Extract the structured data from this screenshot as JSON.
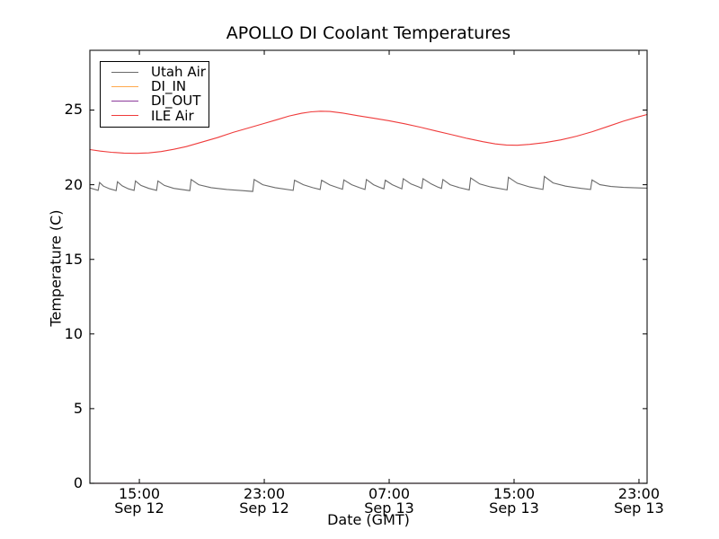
{
  "figure": {
    "title": "APOLLO DI Coolant Temperatures",
    "xlabel": "Date (GMT)",
    "ylabel": "Temperature (C)"
  },
  "chart_data": {
    "type": "line",
    "title": "APOLLO DI Coolant Temperatures",
    "xlabel": "Date (GMT)",
    "ylabel": "Temperature (C)",
    "x_unit": "hours since Sep 12 00:00 GMT",
    "xlim": [
      11.83,
      47.52
    ],
    "ylim": [
      0,
      29
    ],
    "grid": false,
    "legend_position": "upper left",
    "y_ticks": [
      0,
      5,
      10,
      15,
      20,
      25
    ],
    "x_ticks": [
      {
        "value": 15,
        "label_line1": "15:00",
        "label_line2": "Sep 12"
      },
      {
        "value": 23,
        "label_line1": "23:00",
        "label_line2": "Sep 12"
      },
      {
        "value": 31,
        "label_line1": "07:00",
        "label_line2": "Sep 13"
      },
      {
        "value": 39,
        "label_line1": "15:00",
        "label_line2": "Sep 13"
      },
      {
        "value": 47,
        "label_line1": "23:00",
        "label_line2": "Sep 13"
      }
    ],
    "series": [
      {
        "name": "Utah Air",
        "color": "#6a6a6a",
        "points": [
          [
            11.83,
            19.78
          ],
          [
            12.36,
            19.62
          ],
          [
            12.45,
            20.15
          ],
          [
            12.7,
            19.9
          ],
          [
            13.1,
            19.72
          ],
          [
            13.51,
            19.6
          ],
          [
            13.6,
            20.2
          ],
          [
            13.9,
            19.92
          ],
          [
            14.3,
            19.72
          ],
          [
            14.66,
            19.62
          ],
          [
            14.75,
            20.25
          ],
          [
            15.1,
            19.95
          ],
          [
            15.6,
            19.75
          ],
          [
            16.1,
            19.62
          ],
          [
            16.19,
            20.25
          ],
          [
            16.6,
            19.95
          ],
          [
            17.2,
            19.75
          ],
          [
            18.23,
            19.6
          ],
          [
            18.32,
            20.35
          ],
          [
            18.8,
            20.0
          ],
          [
            19.6,
            19.8
          ],
          [
            20.6,
            19.68
          ],
          [
            21.6,
            19.6
          ],
          [
            22.26,
            19.55
          ],
          [
            22.35,
            20.35
          ],
          [
            22.9,
            20.0
          ],
          [
            23.7,
            19.8
          ],
          [
            24.85,
            19.62
          ],
          [
            24.94,
            20.3
          ],
          [
            25.5,
            20.0
          ],
          [
            26.1,
            19.8
          ],
          [
            26.58,
            19.68
          ],
          [
            26.67,
            20.3
          ],
          [
            27.2,
            19.98
          ],
          [
            27.7,
            19.8
          ],
          [
            28.01,
            19.7
          ],
          [
            28.1,
            20.32
          ],
          [
            28.6,
            20.0
          ],
          [
            29.1,
            19.8
          ],
          [
            29.45,
            19.68
          ],
          [
            29.54,
            20.35
          ],
          [
            30.0,
            20.0
          ],
          [
            30.4,
            19.82
          ],
          [
            30.66,
            19.72
          ],
          [
            30.75,
            20.3
          ],
          [
            31.2,
            20.0
          ],
          [
            31.6,
            19.82
          ],
          [
            31.81,
            19.72
          ],
          [
            31.9,
            20.4
          ],
          [
            32.4,
            20.05
          ],
          [
            32.9,
            19.85
          ],
          [
            33.08,
            19.75
          ],
          [
            33.17,
            20.4
          ],
          [
            33.7,
            20.05
          ],
          [
            34.1,
            19.85
          ],
          [
            34.35,
            19.75
          ],
          [
            34.44,
            20.35
          ],
          [
            34.9,
            20.0
          ],
          [
            35.5,
            19.8
          ],
          [
            36.13,
            19.65
          ],
          [
            36.22,
            20.45
          ],
          [
            36.8,
            20.05
          ],
          [
            37.5,
            19.85
          ],
          [
            38.55,
            19.65
          ],
          [
            38.64,
            20.5
          ],
          [
            39.2,
            20.1
          ],
          [
            40.0,
            19.85
          ],
          [
            40.85,
            19.68
          ],
          [
            40.94,
            20.55
          ],
          [
            41.5,
            20.12
          ],
          [
            42.3,
            19.9
          ],
          [
            43.3,
            19.75
          ],
          [
            43.9,
            19.68
          ],
          [
            43.99,
            20.32
          ],
          [
            44.5,
            20.0
          ],
          [
            45.2,
            19.88
          ],
          [
            46.0,
            19.82
          ],
          [
            47.0,
            19.78
          ],
          [
            47.52,
            19.77
          ]
        ]
      },
      {
        "name": "DI_IN",
        "color": "#ffa94d",
        "points": [
          [
            11.83,
            0
          ],
          [
            47.52,
            0
          ]
        ]
      },
      {
        "name": "DI_OUT",
        "color": "#8c3b9b",
        "points": [
          [
            11.83,
            0
          ],
          [
            47.52,
            0
          ]
        ]
      },
      {
        "name": "ILE Air",
        "color": "#ef3b3b",
        "points": [
          [
            11.83,
            22.35
          ],
          [
            12.5,
            22.25
          ],
          [
            13.2,
            22.17
          ],
          [
            14.0,
            22.12
          ],
          [
            14.8,
            22.1
          ],
          [
            15.6,
            22.13
          ],
          [
            16.4,
            22.22
          ],
          [
            17.2,
            22.37
          ],
          [
            18.0,
            22.55
          ],
          [
            19.0,
            22.85
          ],
          [
            20.0,
            23.15
          ],
          [
            21.0,
            23.5
          ],
          [
            22.0,
            23.8
          ],
          [
            23.0,
            24.1
          ],
          [
            23.8,
            24.35
          ],
          [
            24.6,
            24.6
          ],
          [
            25.4,
            24.78
          ],
          [
            26.0,
            24.88
          ],
          [
            26.6,
            24.92
          ],
          [
            27.2,
            24.9
          ],
          [
            28.0,
            24.8
          ],
          [
            29.0,
            24.62
          ],
          [
            30.0,
            24.45
          ],
          [
            31.0,
            24.28
          ],
          [
            32.0,
            24.08
          ],
          [
            33.0,
            23.85
          ],
          [
            34.0,
            23.6
          ],
          [
            35.0,
            23.35
          ],
          [
            36.0,
            23.1
          ],
          [
            37.0,
            22.88
          ],
          [
            37.8,
            22.73
          ],
          [
            38.5,
            22.66
          ],
          [
            39.2,
            22.64
          ],
          [
            40.0,
            22.7
          ],
          [
            41.0,
            22.82
          ],
          [
            42.0,
            23.0
          ],
          [
            43.0,
            23.25
          ],
          [
            44.0,
            23.55
          ],
          [
            45.0,
            23.9
          ],
          [
            46.0,
            24.25
          ],
          [
            46.8,
            24.5
          ],
          [
            47.52,
            24.7
          ]
        ]
      }
    ]
  }
}
